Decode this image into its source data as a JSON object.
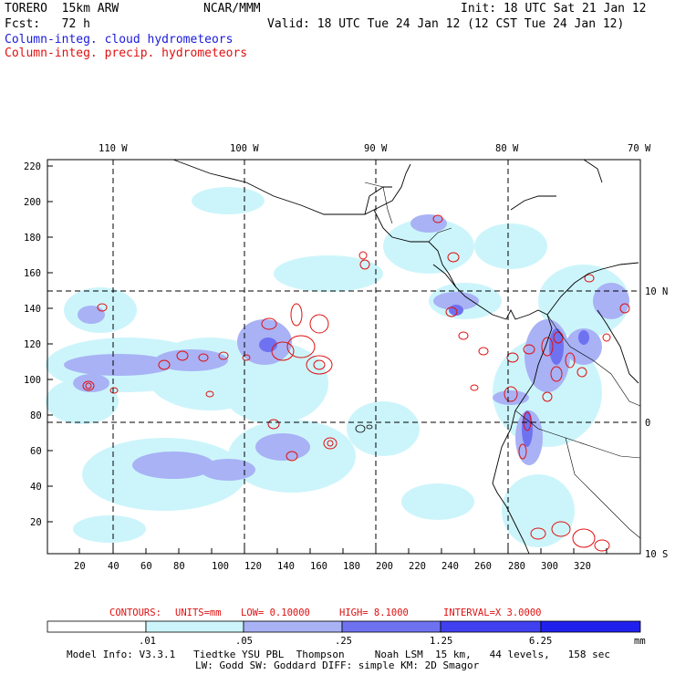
{
  "header": {
    "model_name": "TORERO  15km ARW",
    "org": "NCAR/MMM",
    "init": "Init: 18 UTC Sat 21 Jan 12",
    "fcst": "Fcst:   72 h",
    "valid": "Valid: 18 UTC Tue 24 Jan 12 (12 CST Tue 24 Jan 12)",
    "field_cloud": "Column-integ. cloud hydrometeors",
    "field_precip": "Column-integ. precip. hydrometeors"
  },
  "map": {
    "lon_labels": [
      "110 W",
      "100 W",
      "90 W",
      "80 W",
      "70 W"
    ],
    "lat_labels": [
      "10 N",
      "0",
      "10 S"
    ],
    "x_ticks": [
      "20",
      "40",
      "60",
      "80",
      "100",
      "120",
      "140",
      "160",
      "180",
      "200",
      "220",
      "240",
      "260",
      "280",
      "300",
      "320"
    ],
    "y_ticks": [
      "220",
      "200",
      "180",
      "160",
      "140",
      "120",
      "100",
      "80",
      "60",
      "40",
      "20"
    ]
  },
  "contour_info": {
    "label_contours": "CONTOURS:",
    "units": "UNITS=mm",
    "low": "LOW= 0.10000",
    "high": "HIGH=  8.1000",
    "interval": "INTERVAL=X  3.0000"
  },
  "colorbar": {
    "labels": [
      ".01",
      ".05",
      ".25",
      "1.25",
      "6.25"
    ],
    "unit": "mm",
    "colors": [
      "#ffffff",
      "#ccf5fb",
      "#a8b2f5",
      "#6f72f0",
      "#4040f0",
      "#2020ee"
    ]
  },
  "footer": {
    "line1": "Model Info: V3.3.1   Tiedtke YSU PBL  Thompson     Noah LSM  15 km,   44 levels,   158 sec",
    "line2": "LW: Godd SW: Goddard DIFF: simple KM: 2D Smagor"
  }
}
